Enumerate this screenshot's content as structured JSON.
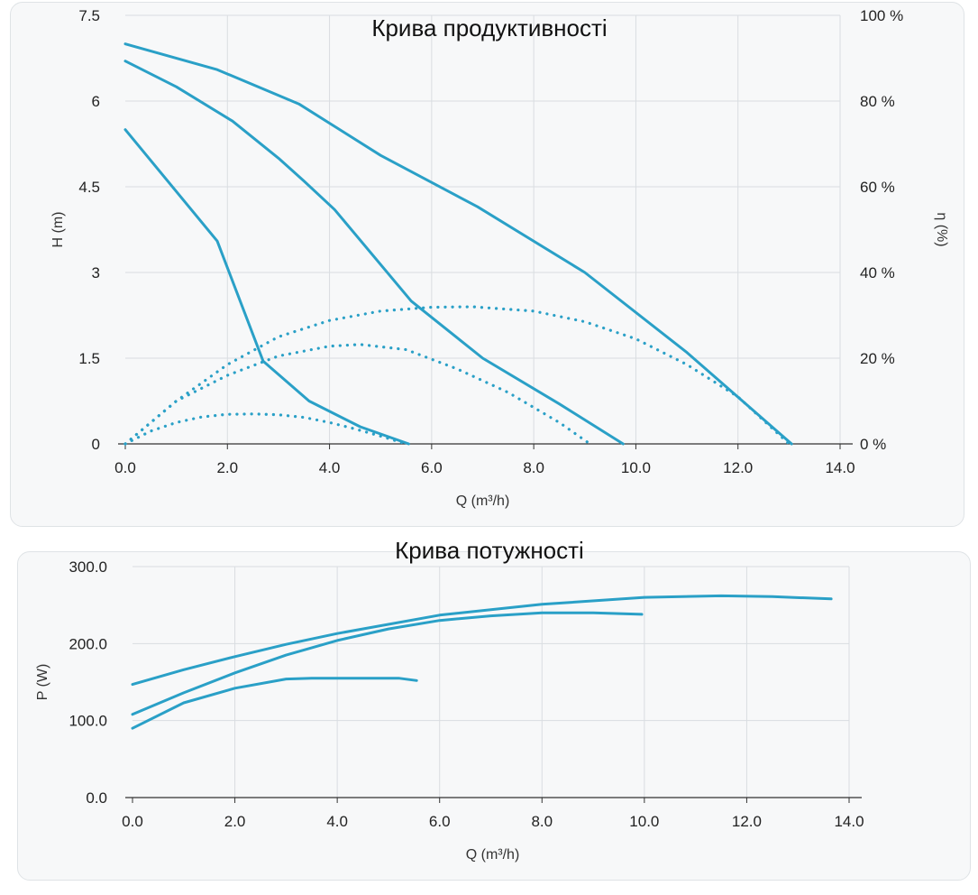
{
  "colors": {
    "line": "#2aa0c7",
    "grid": "#d9dde1",
    "axis": "#333333"
  },
  "chart_data": [
    {
      "type": "line",
      "title": "Крива продуктивності",
      "xlabel": "Q (m³/h)",
      "ylabel": "H (m)",
      "y2label": "η (%)",
      "xlim": [
        0,
        14
      ],
      "ylim": [
        0,
        7.5
      ],
      "y2lim": [
        0,
        100
      ],
      "x_ticks": [
        "0.0",
        "2.0",
        "4.0",
        "6.0",
        "8.0",
        "10.0",
        "12.0",
        "14.0"
      ],
      "y_ticks": [
        "0",
        "1.5",
        "3",
        "4.5",
        "6",
        "7.5"
      ],
      "y2_ticks": [
        "0 %",
        "20 %",
        "40 %",
        "60 %",
        "80 %",
        "100 %"
      ],
      "grid": true,
      "series": [
        {
          "style": "solid",
          "x": [
            0,
            1.8,
            2.7,
            3.6,
            4.6,
            5.55
          ],
          "y": [
            5.5,
            3.55,
            1.45,
            0.75,
            0.3,
            0.0
          ]
        },
        {
          "style": "solid",
          "x": [
            0,
            1.0,
            2.1,
            3.0,
            3.5,
            4.1,
            5.6,
            7.0,
            8.5,
            9.75
          ],
          "y": [
            6.7,
            6.25,
            5.65,
            5.0,
            4.6,
            4.1,
            2.5,
            1.5,
            0.7,
            0.0
          ]
        },
        {
          "style": "solid",
          "x": [
            0,
            1.8,
            3.4,
            5.0,
            6.9,
            9.0,
            11.0,
            13.05
          ],
          "y": [
            7.0,
            6.55,
            5.95,
            5.05,
            4.15,
            3.0,
            1.6,
            0.0
          ]
        },
        {
          "style": "dotted",
          "axis": "y2",
          "x": [
            0,
            0.5,
            1.0,
            1.5,
            2.0,
            2.5,
            3.0,
            3.5,
            4.0,
            4.5,
            5.0,
            5.5
          ],
          "y": [
            0,
            3.0,
            5.0,
            6.3,
            6.9,
            7.0,
            6.8,
            6.2,
            5.0,
            3.5,
            1.8,
            0
          ]
        },
        {
          "style": "dotted",
          "axis": "y2",
          "x": [
            0,
            1.0,
            2.0,
            3.0,
            4.0,
            4.6,
            5.5,
            6.5,
            7.5,
            8.5,
            9.1
          ],
          "y": [
            0,
            10.0,
            16.0,
            20.5,
            22.8,
            23.2,
            22.0,
            17.5,
            12.0,
            5.0,
            0
          ]
        },
        {
          "style": "dotted",
          "axis": "y2",
          "x": [
            0,
            1.0,
            2.0,
            3.0,
            4.0,
            5.0,
            6.0,
            6.8,
            8.0,
            9.0,
            10.0,
            11.0,
            12.0,
            13.0
          ],
          "y": [
            0,
            10.0,
            18.5,
            25.0,
            28.8,
            31.0,
            31.9,
            32.0,
            31.0,
            28.5,
            24.5,
            18.5,
            11.0,
            0
          ]
        }
      ]
    },
    {
      "type": "line",
      "title": "Крива потужності",
      "xlabel": "Q (m³/h)",
      "ylabel": "P (W)",
      "xlim": [
        0,
        14
      ],
      "ylim": [
        0,
        300
      ],
      "x_ticks": [
        "0.0",
        "2.0",
        "4.0",
        "6.0",
        "8.0",
        "10.0",
        "12.0",
        "14.0"
      ],
      "y_ticks": [
        "0.0",
        "100.0",
        "200.0",
        "300.0"
      ],
      "grid": true,
      "series": [
        {
          "style": "solid",
          "x": [
            0,
            1.0,
            2.0,
            3.0,
            3.5,
            4.5,
            5.2,
            5.55
          ],
          "y": [
            90,
            123,
            142,
            154,
            155,
            155,
            155,
            152
          ]
        },
        {
          "style": "solid",
          "x": [
            0,
            1.0,
            2.0,
            3.0,
            4.0,
            5.0,
            6.0,
            7.0,
            8.0,
            9.0,
            9.95
          ],
          "y": [
            108,
            136,
            162,
            185,
            204,
            219,
            230,
            236,
            240,
            240,
            238
          ]
        },
        {
          "style": "solid",
          "x": [
            0,
            1.0,
            2.0,
            3.0,
            4.0,
            6.0,
            8.0,
            10.0,
            11.5,
            12.5,
            13.65
          ],
          "y": [
            147,
            166,
            183,
            199,
            213,
            237,
            251,
            260,
            262,
            261,
            258
          ]
        }
      ]
    }
  ]
}
